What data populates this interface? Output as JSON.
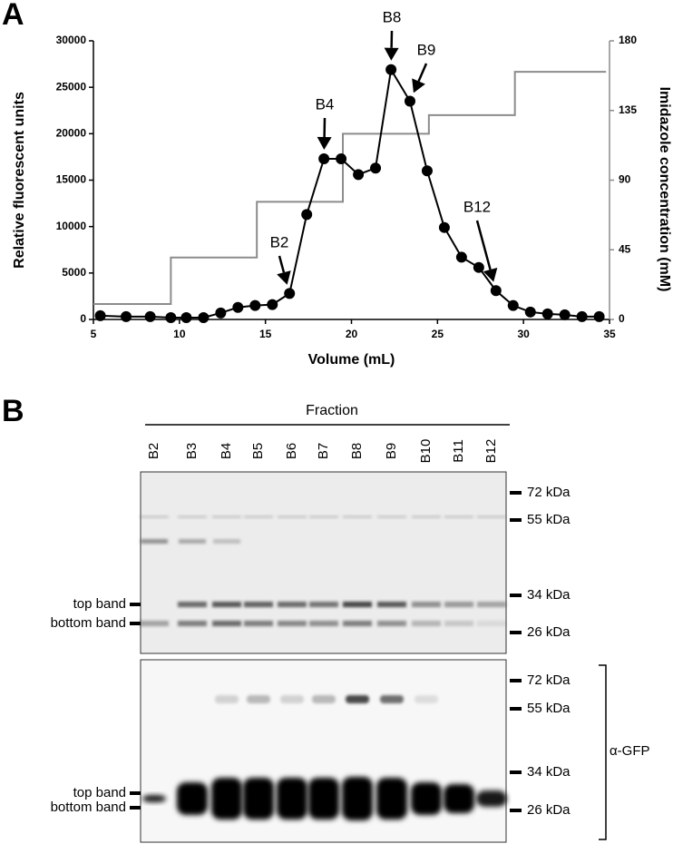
{
  "panel_a": {
    "label": "A"
  },
  "chart_data": {
    "type": "line",
    "xlabel": "Volume (mL)",
    "ylabel": "Relative fluorescent units",
    "y2label": "Imidazole concentration (mM)",
    "xlim": [
      5,
      35
    ],
    "xticks": [
      5,
      10,
      15,
      20,
      25,
      30,
      35
    ],
    "ylim": [
      0,
      30000
    ],
    "yticks": [
      0,
      5000,
      10000,
      15000,
      20000,
      25000,
      30000
    ],
    "y2lim": [
      0,
      180
    ],
    "y2ticks": [
      0,
      45,
      90,
      135,
      180
    ],
    "series": [
      {
        "color": "#000000",
        "marker": "circle",
        "x": [
          5.4,
          6.9,
          8.3,
          9.5,
          10.4,
          11.4,
          12.4,
          13.4,
          14.4,
          15.4,
          16.4,
          17.4,
          18.4,
          19.4,
          20.4,
          21.4,
          22.3,
          23.4,
          24.4,
          25.4,
          26.4,
          27.4,
          28.4,
          29.4,
          30.4,
          31.4,
          32.4,
          33.4,
          34.4
        ],
        "values": [
          400,
          300,
          300,
          200,
          200,
          200,
          700,
          1300,
          1500,
          1600,
          2800,
          11300,
          17300,
          17300,
          15600,
          16300,
          26900,
          23500,
          16000,
          9900,
          6700,
          5600,
          3100,
          1500,
          800,
          600,
          500,
          300,
          300
        ]
      },
      {
        "color": "#8c8c8c",
        "axis": "y2",
        "x": [
          5,
          9.5,
          9.5,
          14.5,
          14.5,
          19.5,
          19.5,
          24.5,
          24.5,
          29.5,
          29.5,
          34.8
        ],
        "values": [
          10,
          10,
          40,
          40,
          76,
          76,
          120,
          120,
          132,
          132,
          160,
          160
        ]
      }
    ],
    "annotations": [
      "B2",
      "B4",
      "B8",
      "B9",
      "B12"
    ]
  },
  "panel_b": {
    "label": "B",
    "header": "Fraction",
    "lanes": [
      "B2",
      "B3",
      "B4",
      "B5",
      "B6",
      "B7",
      "B8",
      "B9",
      "B10",
      "B11",
      "B12"
    ],
    "blots": [
      {
        "markers": [
          "72 kDa",
          "55 kDa",
          "34 kDa",
          "26 kDa"
        ],
        "band_labels": [
          "top band",
          "bottom band"
        ]
      },
      {
        "markers": [
          "72 kDa",
          "55 kDa",
          "34 kDa",
          "26 kDa"
        ],
        "band_labels": [
          "top band",
          "bottom band"
        ],
        "antibody": "α-GFP"
      }
    ]
  }
}
